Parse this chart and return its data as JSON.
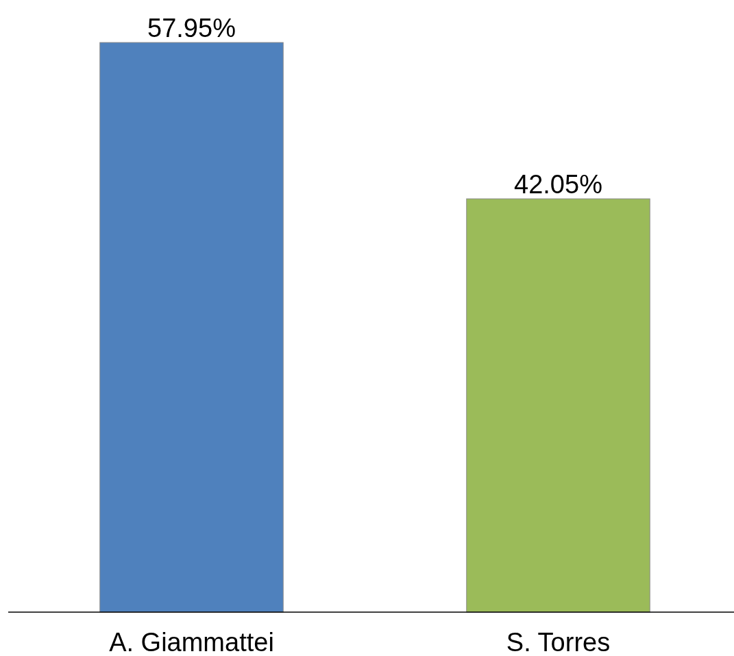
{
  "chart_data": {
    "type": "bar",
    "categories": [
      "A. Giammattei",
      "S. Torres"
    ],
    "values": [
      57.95,
      42.05
    ],
    "colors": [
      "#4f81bd",
      "#9bbb59"
    ],
    "value_labels": [
      "57.95%",
      "42.05%"
    ]
  }
}
